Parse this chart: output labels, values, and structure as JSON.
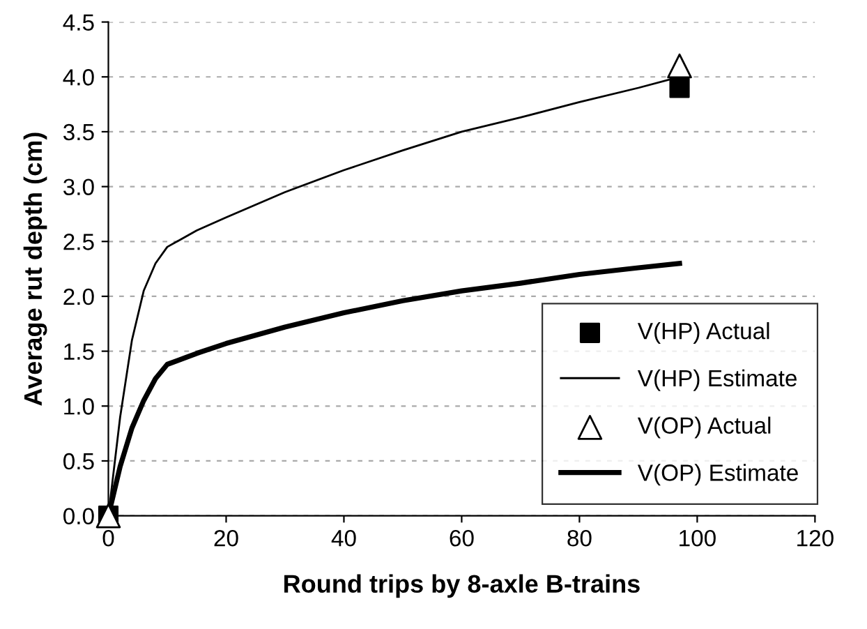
{
  "chart_data": {
    "type": "line",
    "xlabel": "Round trips by 8-axle B-trains",
    "ylabel": "Average rut depth (cm)",
    "xlim": [
      0,
      120
    ],
    "xticks": [
      0,
      20,
      40,
      60,
      80,
      100,
      120
    ],
    "ylim": [
      0,
      4.5
    ],
    "yticks": [
      {
        "value": 0,
        "label": "0.0"
      },
      {
        "value": 0.5,
        "label": "0.5"
      },
      {
        "value": 1,
        "label": "1.0"
      },
      {
        "value": 1.5,
        "label": "1.5"
      },
      {
        "value": 2,
        "label": "2.0"
      },
      {
        "value": 2.5,
        "label": "2.5"
      },
      {
        "value": 3,
        "label": "3.0"
      },
      {
        "value": 3.5,
        "label": "3.5"
      },
      {
        "value": 4,
        "label": "4.0"
      },
      {
        "value": 4.5,
        "label": "4.5"
      }
    ],
    "grid": "y",
    "legend": "bottom right",
    "series": [
      {
        "name": "V(HP) Actual",
        "type": "scatter",
        "marker": "square",
        "color": "#000000",
        "x": [
          0,
          97
        ],
        "values": [
          0,
          3.9
        ]
      },
      {
        "name": "V(HP) Estimate",
        "color": "#000000",
        "x": [
          0,
          2,
          4,
          6,
          8,
          10,
          15,
          20,
          30,
          40,
          50,
          60,
          70,
          80,
          90,
          97
        ],
        "values": [
          0,
          0.9,
          1.6,
          2.05,
          2.3,
          2.45,
          2.6,
          2.72,
          2.95,
          3.15,
          3.33,
          3.5,
          3.63,
          3.77,
          3.9,
          4.0
        ]
      },
      {
        "name": "V(OP) Actual",
        "type": "scatter",
        "marker": "triangle",
        "color": "#000000",
        "x": [
          0,
          97
        ],
        "values": [
          0,
          4.1
        ]
      },
      {
        "name": "V(OP) Estimate",
        "color": "#000000",
        "x": [
          0,
          2,
          4,
          6,
          8,
          10,
          15,
          20,
          30,
          40,
          50,
          60,
          70,
          80,
          90,
          97
        ],
        "values": [
          0,
          0.45,
          0.8,
          1.05,
          1.25,
          1.38,
          1.48,
          1.57,
          1.72,
          1.85,
          1.96,
          2.05,
          2.12,
          2.2,
          2.26,
          2.3
        ]
      }
    ]
  }
}
